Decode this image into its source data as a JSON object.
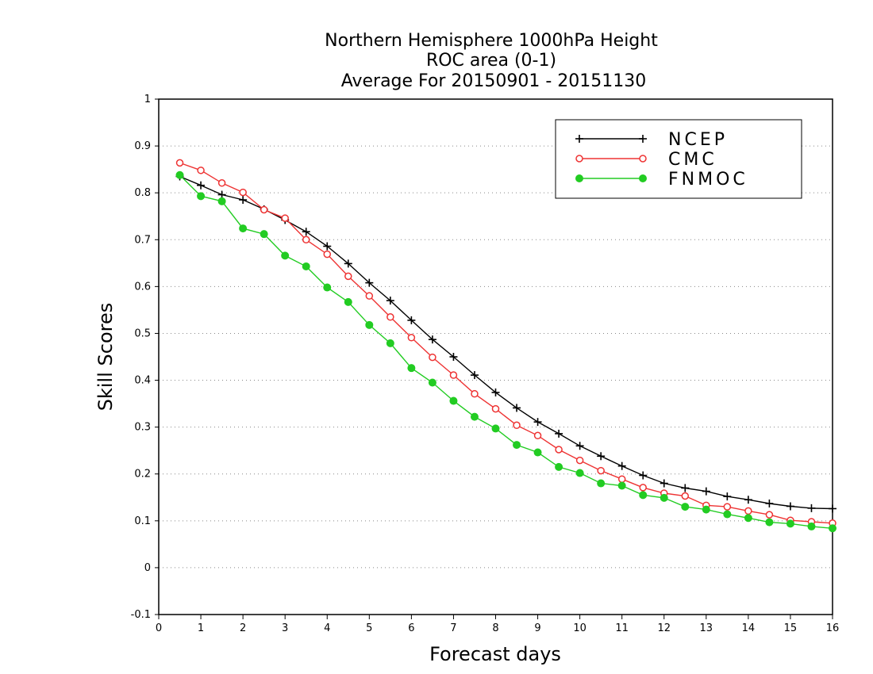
{
  "chart_data": {
    "type": "line",
    "title": [
      "Northern Hemisphere 1000hPa Height",
      "ROC area (0-1)",
      "Average For 20150901 - 20151130"
    ],
    "xlabel": "Forecast days",
    "ylabel": "Skill Scores",
    "xlim": [
      0,
      16
    ],
    "ylim": [
      -0.1,
      1
    ],
    "x_ticks": [
      "0",
      "1",
      "2",
      "3",
      "4",
      "5",
      "6",
      "7",
      "8",
      "9",
      "10",
      "11",
      "12",
      "13",
      "14",
      "15",
      "16"
    ],
    "y_ticks": [
      "-0.1",
      "0",
      "0.1",
      "0.2",
      "0.3",
      "0.4",
      "0.5",
      "0.6",
      "0.7",
      "0.8",
      "0.9",
      "1"
    ],
    "grid": "horizontal-dotted",
    "legend_position": "top-right",
    "x": [
      0.5,
      1,
      1.5,
      2,
      2.5,
      3,
      3.5,
      4,
      4.5,
      5,
      5.5,
      6,
      6.5,
      7,
      7.5,
      8,
      8.5,
      9,
      9.5,
      10,
      10.5,
      11,
      11.5,
      12,
      12.5,
      13,
      13.5,
      14,
      14.5,
      15,
      15.5,
      16
    ],
    "series": [
      {
        "name": "NCEP",
        "color": "#000000",
        "marker": "plus",
        "values": [
          0.835,
          0.816,
          0.796,
          0.785,
          0.765,
          0.742,
          0.717,
          0.686,
          0.649,
          0.608,
          0.57,
          0.528,
          0.487,
          0.45,
          0.411,
          0.374,
          0.341,
          0.311,
          0.286,
          0.26,
          0.238,
          0.217,
          0.197,
          0.18,
          0.17,
          0.163,
          0.152,
          0.145,
          0.137,
          0.131,
          0.127,
          0.126
        ]
      },
      {
        "name": "CMC",
        "color": "#ee3333",
        "marker": "open-circle",
        "values": [
          0.864,
          0.848,
          0.821,
          0.801,
          0.764,
          0.746,
          0.7,
          0.669,
          0.622,
          0.58,
          0.535,
          0.491,
          0.449,
          0.411,
          0.371,
          0.339,
          0.304,
          0.282,
          0.252,
          0.229,
          0.207,
          0.189,
          0.171,
          0.159,
          0.153,
          0.133,
          0.13,
          0.121,
          0.113,
          0.101,
          0.098,
          0.095
        ]
      },
      {
        "name": "FNMOC",
        "color": "#22cc22",
        "marker": "filled-circle",
        "values": [
          0.838,
          0.793,
          0.782,
          0.724,
          0.712,
          0.666,
          0.643,
          0.598,
          0.567,
          0.518,
          0.479,
          0.426,
          0.395,
          0.356,
          0.322,
          0.297,
          0.262,
          0.246,
          0.215,
          0.202,
          0.18,
          0.175,
          0.155,
          0.149,
          0.13,
          0.124,
          0.114,
          0.106,
          0.097,
          0.094,
          0.088,
          0.084
        ]
      }
    ]
  }
}
